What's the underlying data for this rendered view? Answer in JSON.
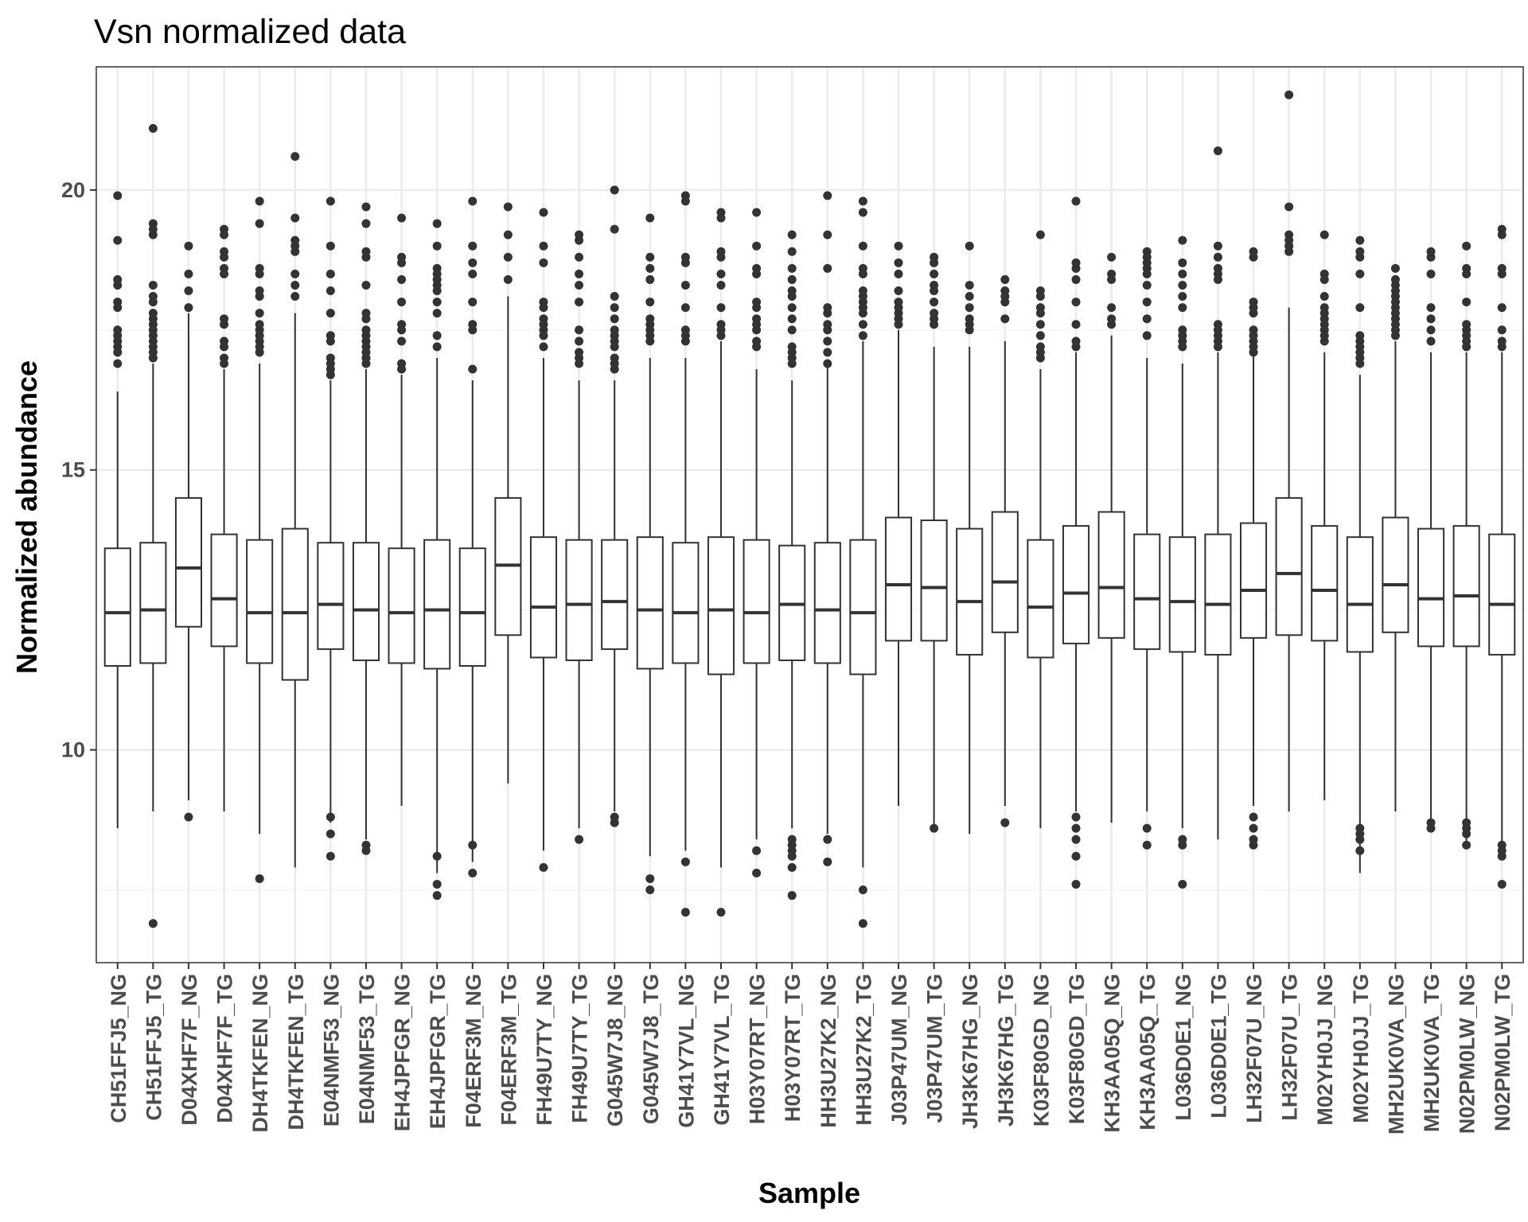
{
  "chart_data": {
    "type": "box",
    "title": "Vsn normalized data",
    "xlabel": "Sample",
    "ylabel": "Normalized abundance",
    "ylim": [
      6.2,
      22.2
    ],
    "yticks": [
      10,
      15,
      20
    ],
    "grid": true,
    "legend": "none",
    "colors": {
      "box_stroke": "#333333",
      "box_fill": "#ffffff",
      "grid_major": "#ebebeb",
      "grid_minor": "#f4f4f4",
      "panel_border": "#333333"
    },
    "categories": [
      "CH51FFJ5_NG",
      "CH51FFJ5_TG",
      "D04XHF7F_NG",
      "D04XHF7F_TG",
      "DH4TKFEN_NG",
      "DH4TKFEN_TG",
      "E04NMF53_NG",
      "E04NMF53_TG",
      "EH4JPFGR_NG",
      "EH4JPFGR_TG",
      "F04ERF3M_NG",
      "F04ERF3M_TG",
      "FH49U7TY_NG",
      "FH49U7TY_TG",
      "G045W7J8_NG",
      "G045W7J8_TG",
      "GH41Y7VL_NG",
      "GH41Y7VL_TG",
      "H03Y07RT_NG",
      "H03Y07RT_TG",
      "HH3U27K2_NG",
      "HH3U27K2_TG",
      "J03P47UM_NG",
      "J03P47UM_TG",
      "JH3K67HG_NG",
      "JH3K67HG_TG",
      "K03F80GD_NG",
      "K03F80GD_TG",
      "KH3AA05Q_NG",
      "KH3AA05Q_TG",
      "L036D0E1_NG",
      "L036D0E1_TG",
      "LH32F07U_NG",
      "LH32F07U_TG",
      "M02YH0JJ_NG",
      "M02YH0JJ_TG",
      "MH2UK0VA_NG",
      "MH2UK0VA_TG",
      "N02PM0LW_NG",
      "N02PM0LW_TG"
    ],
    "boxes": [
      {
        "min": 8.6,
        "q1": 11.5,
        "median": 12.45,
        "q3": 13.6,
        "max": 16.4,
        "outliers": [
          19.9,
          19.1,
          18.4,
          18.3,
          18.0,
          17.9,
          17.5,
          17.4,
          17.3,
          17.2,
          17.1,
          16.9
        ]
      },
      {
        "min": 8.9,
        "q1": 11.55,
        "median": 12.5,
        "q3": 13.7,
        "max": 16.9,
        "outliers": [
          21.1,
          19.4,
          19.3,
          19.2,
          18.3,
          18.1,
          18.0,
          17.8,
          17.7,
          17.6,
          17.5,
          17.4,
          17.3,
          17.2,
          17.1,
          17.0,
          6.9
        ]
      },
      {
        "min": 9.1,
        "q1": 12.2,
        "median": 13.25,
        "q3": 14.5,
        "max": 17.8,
        "outliers": [
          19.0,
          18.5,
          18.2,
          17.9,
          8.8
        ]
      },
      {
        "min": 8.9,
        "q1": 11.85,
        "median": 12.7,
        "q3": 13.85,
        "max": 16.8,
        "outliers": [
          19.3,
          19.2,
          18.9,
          18.8,
          18.6,
          18.5,
          17.7,
          17.6,
          17.3,
          17.2,
          17.0,
          16.9
        ]
      },
      {
        "min": 8.5,
        "q1": 11.55,
        "median": 12.45,
        "q3": 13.75,
        "max": 16.9,
        "outliers": [
          19.8,
          19.4,
          18.6,
          18.5,
          18.2,
          18.1,
          17.8,
          17.6,
          17.5,
          17.4,
          17.3,
          17.2,
          17.1,
          7.7
        ]
      },
      {
        "min": 7.9,
        "q1": 11.25,
        "median": 12.45,
        "q3": 13.95,
        "max": 17.8,
        "outliers": [
          20.6,
          19.5,
          19.1,
          19.0,
          18.9,
          18.5,
          18.3,
          18.1
        ]
      },
      {
        "min": 8.7,
        "q1": 11.8,
        "median": 12.6,
        "q3": 13.7,
        "max": 16.6,
        "outliers": [
          19.8,
          19.0,
          18.5,
          18.2,
          17.8,
          17.4,
          17.3,
          17.0,
          16.9,
          16.8,
          16.7,
          8.8,
          8.5,
          8.1
        ]
      },
      {
        "min": 8.4,
        "q1": 11.6,
        "median": 12.5,
        "q3": 13.7,
        "max": 16.8,
        "outliers": [
          19.7,
          19.4,
          18.9,
          18.8,
          18.3,
          17.8,
          17.7,
          17.5,
          17.4,
          17.3,
          17.2,
          17.1,
          17.0,
          16.9,
          8.3,
          8.2
        ]
      },
      {
        "min": 9.0,
        "q1": 11.55,
        "median": 12.45,
        "q3": 13.6,
        "max": 16.7,
        "outliers": [
          19.5,
          18.8,
          18.7,
          18.4,
          18.0,
          17.6,
          17.5,
          17.3,
          16.9,
          16.8
        ]
      },
      {
        "min": 7.8,
        "q1": 11.45,
        "median": 12.5,
        "q3": 13.75,
        "max": 17.0,
        "outliers": [
          19.4,
          19.0,
          18.6,
          18.5,
          18.4,
          18.3,
          18.2,
          18.0,
          17.8,
          17.4,
          17.2,
          8.1,
          7.6,
          7.4
        ]
      },
      {
        "min": 8.0,
        "q1": 11.5,
        "median": 12.45,
        "q3": 13.6,
        "max": 16.6,
        "outliers": [
          19.8,
          19.0,
          18.7,
          18.5,
          18.0,
          17.6,
          17.5,
          16.8,
          8.3,
          7.8
        ]
      },
      {
        "min": 9.4,
        "q1": 12.05,
        "median": 13.3,
        "q3": 14.5,
        "max": 18.1,
        "outliers": [
          19.7,
          19.2,
          18.8,
          18.4
        ]
      },
      {
        "min": 8.2,
        "q1": 11.65,
        "median": 12.55,
        "q3": 13.8,
        "max": 17.0,
        "outliers": [
          19.6,
          19.0,
          18.7,
          18.0,
          17.9,
          17.7,
          17.6,
          17.5,
          17.4,
          17.2,
          7.9
        ]
      },
      {
        "min": 8.6,
        "q1": 11.6,
        "median": 12.6,
        "q3": 13.75,
        "max": 16.6,
        "outliers": [
          19.2,
          19.1,
          18.8,
          18.5,
          18.3,
          18.0,
          17.5,
          17.3,
          17.1,
          17.0,
          16.9,
          8.4
        ]
      },
      {
        "min": 8.9,
        "q1": 11.8,
        "median": 12.65,
        "q3": 13.75,
        "max": 16.6,
        "outliers": [
          20.0,
          19.3,
          18.1,
          17.9,
          17.7,
          17.5,
          17.4,
          17.3,
          17.2,
          17.0,
          16.9,
          16.8,
          8.8,
          8.7
        ]
      },
      {
        "min": 8.1,
        "q1": 11.45,
        "median": 12.5,
        "q3": 13.8,
        "max": 17.0,
        "outliers": [
          19.5,
          18.8,
          18.6,
          18.4,
          18.0,
          17.7,
          17.6,
          17.5,
          17.4,
          17.3,
          7.7,
          7.5
        ]
      },
      {
        "min": 8.2,
        "q1": 11.55,
        "median": 12.45,
        "q3": 13.7,
        "max": 17.0,
        "outliers": [
          19.9,
          19.8,
          18.8,
          18.7,
          18.3,
          17.9,
          17.5,
          17.4,
          17.3,
          8.0,
          7.1
        ]
      },
      {
        "min": 7.9,
        "q1": 11.35,
        "median": 12.5,
        "q3": 13.8,
        "max": 17.3,
        "outliers": [
          19.6,
          19.5,
          18.9,
          18.8,
          18.5,
          18.3,
          17.9,
          17.6,
          17.5,
          17.4,
          7.1
        ]
      },
      {
        "min": 8.4,
        "q1": 11.55,
        "median": 12.45,
        "q3": 13.75,
        "max": 16.8,
        "outliers": [
          19.6,
          19.0,
          18.6,
          18.5,
          18.0,
          17.9,
          17.7,
          17.6,
          17.5,
          17.3,
          17.2,
          8.2,
          7.8
        ]
      },
      {
        "min": 8.6,
        "q1": 11.6,
        "median": 12.6,
        "q3": 13.65,
        "max": 16.6,
        "outliers": [
          19.2,
          18.9,
          18.6,
          18.4,
          18.2,
          18.1,
          17.9,
          17.7,
          17.5,
          17.2,
          17.1,
          17.0,
          16.9,
          8.4,
          8.3,
          8.2,
          8.1,
          7.9,
          7.4
        ]
      },
      {
        "min": 8.5,
        "q1": 11.55,
        "median": 12.5,
        "q3": 13.7,
        "max": 16.9,
        "outliers": [
          19.9,
          19.2,
          18.6,
          17.9,
          17.8,
          17.6,
          17.5,
          17.3,
          17.1,
          16.9,
          8.4,
          8.0
        ]
      },
      {
        "min": 7.9,
        "q1": 11.35,
        "median": 12.45,
        "q3": 13.75,
        "max": 17.3,
        "outliers": [
          19.8,
          19.6,
          19.0,
          18.6,
          18.5,
          18.2,
          18.1,
          18.0,
          17.9,
          17.8,
          17.6,
          17.4,
          7.5,
          6.9
        ]
      },
      {
        "min": 9.0,
        "q1": 11.95,
        "median": 12.95,
        "q3": 14.15,
        "max": 17.5,
        "outliers": [
          19.0,
          18.7,
          18.5,
          18.2,
          18.0,
          17.9,
          17.8,
          17.7,
          17.6
        ]
      },
      {
        "min": 8.6,
        "q1": 11.95,
        "median": 12.9,
        "q3": 14.1,
        "max": 17.2,
        "outliers": [
          18.8,
          18.7,
          18.5,
          18.3,
          18.2,
          18.0,
          17.8,
          17.7,
          17.6,
          8.6
        ]
      },
      {
        "min": 8.5,
        "q1": 11.7,
        "median": 12.65,
        "q3": 13.95,
        "max": 17.2,
        "outliers": [
          19.0,
          18.3,
          18.1,
          17.9,
          17.7,
          17.6,
          17.5
        ]
      },
      {
        "min": 9.0,
        "q1": 12.1,
        "median": 13.0,
        "q3": 14.25,
        "max": 17.3,
        "outliers": [
          18.4,
          18.2,
          18.1,
          18.0,
          17.7,
          8.7
        ]
      },
      {
        "min": 8.6,
        "q1": 11.65,
        "median": 12.55,
        "q3": 13.75,
        "max": 16.8,
        "outliers": [
          19.2,
          18.2,
          18.1,
          17.9,
          17.8,
          17.6,
          17.4,
          17.2,
          17.1,
          17.0
        ]
      },
      {
        "min": 8.9,
        "q1": 11.9,
        "median": 12.8,
        "q3": 14.0,
        "max": 17.1,
        "outliers": [
          19.8,
          18.7,
          18.6,
          18.4,
          18.0,
          17.6,
          17.3,
          17.2,
          8.8,
          8.6,
          8.4,
          8.1,
          7.6
        ]
      },
      {
        "min": 8.7,
        "q1": 12.0,
        "median": 12.9,
        "q3": 14.25,
        "max": 17.4,
        "outliers": [
          18.8,
          18.5,
          18.4,
          17.9,
          17.7,
          17.6
        ]
      },
      {
        "min": 8.9,
        "q1": 11.8,
        "median": 12.7,
        "q3": 13.85,
        "max": 17.0,
        "outliers": [
          18.9,
          18.8,
          18.7,
          18.6,
          18.5,
          18.3,
          18.0,
          17.7,
          17.4,
          8.6,
          8.3
        ]
      },
      {
        "min": 8.6,
        "q1": 11.75,
        "median": 12.65,
        "q3": 13.8,
        "max": 16.9,
        "outliers": [
          19.1,
          18.7,
          18.5,
          18.3,
          18.1,
          17.9,
          17.5,
          17.4,
          17.3,
          17.2,
          8.4,
          8.3,
          7.6
        ]
      },
      {
        "min": 8.4,
        "q1": 11.7,
        "median": 12.6,
        "q3": 13.85,
        "max": 17.1,
        "outliers": [
          20.7,
          19.0,
          18.8,
          18.6,
          18.5,
          18.4,
          17.6,
          17.5,
          17.4,
          17.3,
          17.2
        ]
      },
      {
        "min": 9.0,
        "q1": 12.0,
        "median": 12.85,
        "q3": 14.05,
        "max": 17.1,
        "outliers": [
          18.9,
          18.8,
          18.0,
          17.9,
          17.8,
          17.5,
          17.4,
          17.3,
          17.2,
          17.1,
          8.8,
          8.6,
          8.4,
          8.3
        ]
      },
      {
        "min": 8.9,
        "q1": 12.05,
        "median": 13.15,
        "q3": 14.5,
        "max": 17.9,
        "outliers": [
          21.7,
          19.7,
          19.2,
          19.1,
          19.0,
          18.9
        ]
      },
      {
        "min": 9.1,
        "q1": 11.95,
        "median": 12.85,
        "q3": 14.0,
        "max": 17.1,
        "outliers": [
          19.2,
          18.5,
          18.4,
          18.1,
          17.9,
          17.8,
          17.7,
          17.6,
          17.5,
          17.4,
          17.3
        ]
      },
      {
        "min": 7.8,
        "q1": 11.75,
        "median": 12.6,
        "q3": 13.8,
        "max": 16.7,
        "outliers": [
          19.1,
          18.9,
          18.8,
          18.5,
          17.9,
          17.4,
          17.3,
          17.2,
          17.1,
          17.0,
          16.9,
          8.6,
          8.5,
          8.4,
          8.2
        ]
      },
      {
        "min": 8.9,
        "q1": 12.1,
        "median": 12.95,
        "q3": 14.15,
        "max": 17.3,
        "outliers": [
          18.6,
          18.4,
          18.3,
          18.2,
          18.1,
          18.0,
          17.9,
          17.8,
          17.7,
          17.6,
          17.5,
          17.4
        ]
      },
      {
        "min": 8.6,
        "q1": 11.85,
        "median": 12.7,
        "q3": 13.95,
        "max": 17.1,
        "outliers": [
          18.9,
          18.8,
          18.5,
          17.9,
          17.7,
          17.5,
          17.3,
          8.7,
          8.6
        ]
      },
      {
        "min": 8.3,
        "q1": 11.85,
        "median": 12.75,
        "q3": 14.0,
        "max": 17.1,
        "outliers": [
          19.0,
          18.6,
          18.5,
          18.0,
          17.6,
          17.5,
          17.4,
          17.3,
          17.2,
          8.7,
          8.6,
          8.5,
          8.3
        ]
      },
      {
        "min": 8.3,
        "q1": 11.7,
        "median": 12.6,
        "q3": 13.85,
        "max": 17.1,
        "outliers": [
          19.3,
          19.2,
          18.6,
          18.5,
          17.9,
          17.5,
          17.3,
          17.2,
          8.3,
          8.2,
          8.1,
          7.6
        ]
      }
    ]
  }
}
